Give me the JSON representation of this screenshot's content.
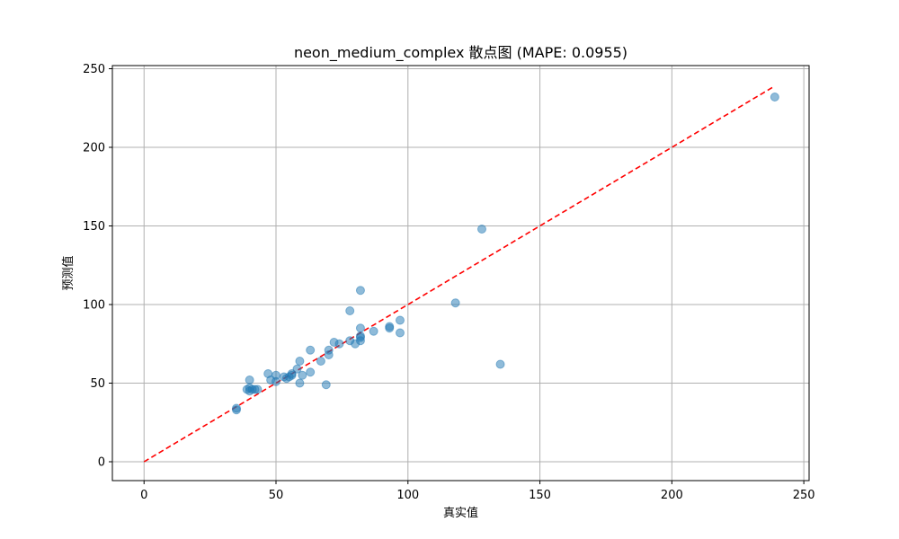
{
  "chart_data": {
    "type": "scatter",
    "title": "neon_medium_complex 散点图 (MAPE: 0.0955)",
    "xlabel": "真实值",
    "ylabel": "预测值",
    "xlim": [
      -12,
      252
    ],
    "ylim": [
      -12,
      252
    ],
    "xticks": [
      0,
      50,
      100,
      150,
      200,
      250
    ],
    "yticks": [
      0,
      50,
      100,
      150,
      200,
      250
    ],
    "grid": true,
    "series": [
      {
        "marker_color": "#1f77b4",
        "marker_opacity": 0.5,
        "points": [
          [
            35,
            34
          ],
          [
            35,
            33
          ],
          [
            39,
            46
          ],
          [
            40,
            52
          ],
          [
            40,
            47
          ],
          [
            40,
            45
          ],
          [
            41,
            46
          ],
          [
            42,
            46
          ],
          [
            43,
            46
          ],
          [
            47,
            56
          ],
          [
            48,
            52
          ],
          [
            50,
            55
          ],
          [
            50,
            51
          ],
          [
            53,
            54
          ],
          [
            54,
            53
          ],
          [
            55,
            54
          ],
          [
            56,
            56
          ],
          [
            56,
            55
          ],
          [
            58,
            59
          ],
          [
            59,
            64
          ],
          [
            59,
            50
          ],
          [
            60,
            55
          ],
          [
            63,
            71
          ],
          [
            63,
            57
          ],
          [
            67,
            64
          ],
          [
            69,
            49
          ],
          [
            70,
            71
          ],
          [
            70,
            68
          ],
          [
            72,
            76
          ],
          [
            74,
            75
          ],
          [
            78,
            77
          ],
          [
            78,
            96
          ],
          [
            80,
            75
          ],
          [
            82,
            109
          ],
          [
            82,
            85
          ],
          [
            82,
            80
          ],
          [
            82,
            79
          ],
          [
            82,
            77
          ],
          [
            87,
            83
          ],
          [
            93,
            86
          ],
          [
            93,
            85
          ],
          [
            97,
            82
          ],
          [
            97,
            90
          ],
          [
            118,
            101
          ],
          [
            128,
            148
          ],
          [
            135,
            62
          ],
          [
            239,
            232
          ]
        ]
      }
    ],
    "reference_line": {
      "x": [
        0,
        239
      ],
      "y": [
        0,
        239
      ],
      "color": "#ff0000",
      "style": "dashed"
    }
  }
}
